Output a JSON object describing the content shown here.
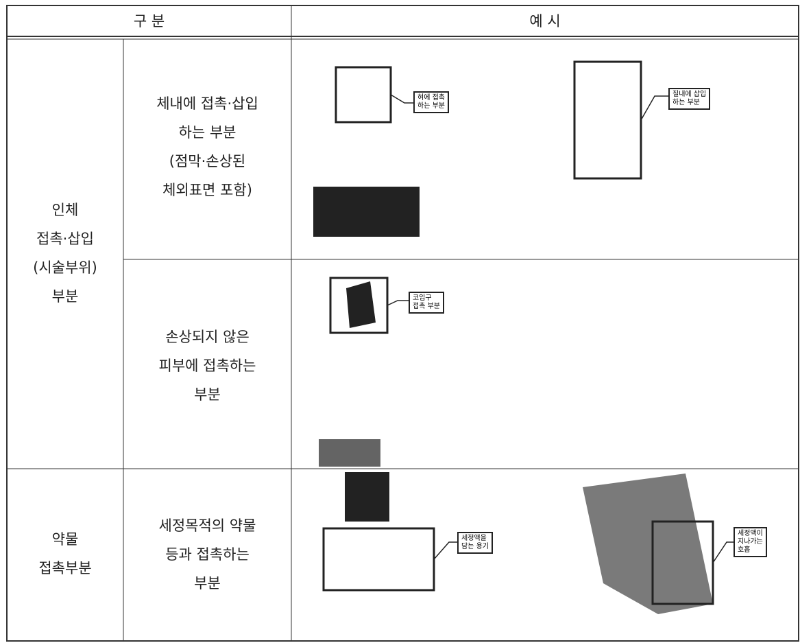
{
  "table": {
    "header": [
      "구 분",
      "예 시"
    ],
    "groups": [
      {
        "label": [
          "인체",
          "접촉·삽입",
          "(시술부위)",
          "부분"
        ]
      },
      {
        "label": [
          "약물",
          "접촉부분"
        ]
      }
    ],
    "rows": [
      {
        "category": [
          "체내에 접촉·삽입",
          "하는 부분",
          "(점막·손상된",
          "체외표면 포함)"
        ],
        "callouts": [
          [
            "혀에 접촉",
            "하는 부분"
          ],
          [
            "질내에 삽입",
            "하는 부분"
          ]
        ]
      },
      {
        "category": [
          "손상되지 않은",
          "피부에 접촉하는",
          "부분"
        ],
        "callouts": [
          [
            "코입구",
            "접촉 부분"
          ]
        ]
      },
      {
        "category": [
          "세정목적의 약물",
          "등과 접촉하는",
          "부분"
        ],
        "callouts": [
          [
            "세정액을",
            "담는 용기"
          ],
          [
            "세정액이",
            "지나가는",
            "호흡"
          ]
        ]
      }
    ]
  }
}
